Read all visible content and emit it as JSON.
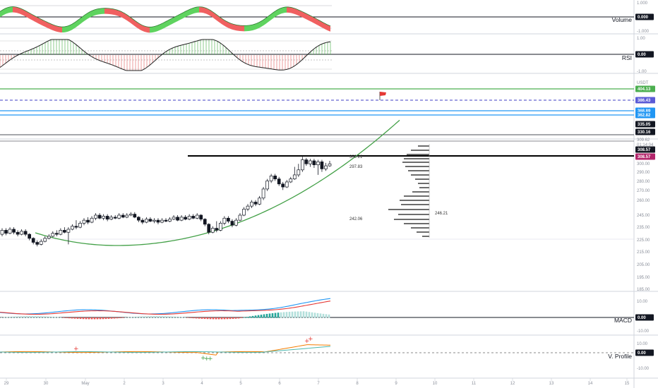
{
  "chart_data": {
    "type": "line",
    "title": "",
    "price_panel": {
      "y_ticks": [
        "309.62",
        "01:14:04",
        "300.00",
        "290.00",
        "280.00",
        "270.00",
        "260.00",
        "245.00",
        "235.00",
        "225.00",
        "215.00",
        "205.00",
        "195.00",
        "185.00"
      ],
      "badges": [
        {
          "label": "404.13",
          "color": "#4caf50"
        },
        {
          "label": "386.43",
          "color": "#5b5bd6"
        },
        {
          "label": "368.89",
          "color": "#2196f3"
        },
        {
          "label": "362.82",
          "color": "#2196f3"
        },
        {
          "label": "335.05",
          "color": "#131722"
        },
        {
          "label": "330.16",
          "color": "#131722"
        },
        {
          "label": "308.57",
          "color": "#131722"
        },
        {
          "label": "308.57",
          "color": "#b2256b"
        }
      ],
      "annotations": [
        "309.21",
        "297.83",
        "242.06",
        "246.21"
      ],
      "candles": [
        {
          "o": 236,
          "c": 240,
          "h": 242,
          "l": 234
        },
        {
          "o": 240,
          "c": 237,
          "h": 242,
          "l": 235
        },
        {
          "o": 237,
          "c": 241,
          "h": 243,
          "l": 236
        },
        {
          "o": 241,
          "c": 238,
          "h": 243,
          "l": 236
        },
        {
          "o": 238,
          "c": 236,
          "h": 240,
          "l": 234
        },
        {
          "o": 236,
          "c": 239,
          "h": 241,
          "l": 235
        },
        {
          "o": 239,
          "c": 236,
          "h": 241,
          "l": 234
        },
        {
          "o": 236,
          "c": 232,
          "h": 237,
          "l": 230
        },
        {
          "o": 232,
          "c": 228,
          "h": 233,
          "l": 226
        },
        {
          "o": 228,
          "c": 226,
          "h": 230,
          "l": 224
        },
        {
          "o": 226,
          "c": 229,
          "h": 231,
          "l": 225
        },
        {
          "o": 229,
          "c": 232,
          "h": 234,
          "l": 228
        },
        {
          "o": 232,
          "c": 234,
          "h": 236,
          "l": 231
        },
        {
          "o": 234,
          "c": 237,
          "h": 239,
          "l": 233
        },
        {
          "o": 237,
          "c": 236,
          "h": 240,
          "l": 234
        },
        {
          "o": 236,
          "c": 240,
          "h": 242,
          "l": 235
        },
        {
          "o": 240,
          "c": 238,
          "h": 243,
          "l": 237
        },
        {
          "o": 238,
          "c": 241,
          "h": 243,
          "l": 226
        },
        {
          "o": 241,
          "c": 244,
          "h": 246,
          "l": 240
        },
        {
          "o": 244,
          "c": 243,
          "h": 250,
          "l": 241
        },
        {
          "o": 243,
          "c": 247,
          "h": 249,
          "l": 242
        },
        {
          "o": 247,
          "c": 250,
          "h": 252,
          "l": 245
        },
        {
          "o": 250,
          "c": 248,
          "h": 253,
          "l": 246
        },
        {
          "o": 248,
          "c": 252,
          "h": 254,
          "l": 247
        },
        {
          "o": 252,
          "c": 255,
          "h": 257,
          "l": 250
        },
        {
          "o": 255,
          "c": 252,
          "h": 257,
          "l": 251
        },
        {
          "o": 252,
          "c": 254,
          "h": 256,
          "l": 250
        },
        {
          "o": 254,
          "c": 251,
          "h": 256,
          "l": 249
        },
        {
          "o": 251,
          "c": 253,
          "h": 255,
          "l": 250
        },
        {
          "o": 253,
          "c": 252,
          "h": 255,
          "l": 251
        },
        {
          "o": 252,
          "c": 255,
          "h": 257,
          "l": 251
        },
        {
          "o": 255,
          "c": 253,
          "h": 257,
          "l": 252
        },
        {
          "o": 253,
          "c": 255,
          "h": 257,
          "l": 252
        },
        {
          "o": 255,
          "c": 256,
          "h": 258,
          "l": 254
        },
        {
          "o": 256,
          "c": 253,
          "h": 258,
          "l": 252
        },
        {
          "o": 253,
          "c": 250,
          "h": 254,
          "l": 248
        },
        {
          "o": 250,
          "c": 248,
          "h": 252,
          "l": 246
        },
        {
          "o": 248,
          "c": 251,
          "h": 253,
          "l": 247
        },
        {
          "o": 251,
          "c": 249,
          "h": 253,
          "l": 248
        },
        {
          "o": 249,
          "c": 250,
          "h": 252,
          "l": 247
        },
        {
          "o": 250,
          "c": 248,
          "h": 252,
          "l": 246
        },
        {
          "o": 248,
          "c": 250,
          "h": 252,
          "l": 247
        },
        {
          "o": 250,
          "c": 249,
          "h": 252,
          "l": 248
        },
        {
          "o": 249,
          "c": 251,
          "h": 253,
          "l": 248
        },
        {
          "o": 251,
          "c": 253,
          "h": 255,
          "l": 250
        },
        {
          "o": 253,
          "c": 250,
          "h": 255,
          "l": 249
        },
        {
          "o": 250,
          "c": 253,
          "h": 255,
          "l": 249
        },
        {
          "o": 253,
          "c": 251,
          "h": 255,
          "l": 250
        },
        {
          "o": 251,
          "c": 254,
          "h": 256,
          "l": 250
        },
        {
          "o": 254,
          "c": 252,
          "h": 256,
          "l": 251
        },
        {
          "o": 252,
          "c": 255,
          "h": 257,
          "l": 251
        },
        {
          "o": 255,
          "c": 251,
          "h": 256,
          "l": 249
        },
        {
          "o": 251,
          "c": 246,
          "h": 252,
          "l": 244
        },
        {
          "o": 246,
          "c": 238,
          "h": 247,
          "l": 236
        },
        {
          "o": 238,
          "c": 242,
          "h": 244,
          "l": 237
        },
        {
          "o": 242,
          "c": 240,
          "h": 249,
          "l": 238
        },
        {
          "o": 240,
          "c": 247,
          "h": 249,
          "l": 239
        },
        {
          "o": 247,
          "c": 252,
          "h": 254,
          "l": 245
        },
        {
          "o": 252,
          "c": 249,
          "h": 254,
          "l": 247
        },
        {
          "o": 249,
          "c": 245,
          "h": 251,
          "l": 243
        },
        {
          "o": 245,
          "c": 250,
          "h": 252,
          "l": 244
        },
        {
          "o": 250,
          "c": 255,
          "h": 257,
          "l": 249
        },
        {
          "o": 255,
          "c": 261,
          "h": 263,
          "l": 254
        },
        {
          "o": 261,
          "c": 264,
          "h": 266,
          "l": 259
        },
        {
          "o": 264,
          "c": 268,
          "h": 270,
          "l": 262
        },
        {
          "o": 268,
          "c": 266,
          "h": 270,
          "l": 264
        },
        {
          "o": 266,
          "c": 272,
          "h": 274,
          "l": 265
        },
        {
          "o": 272,
          "c": 281,
          "h": 283,
          "l": 270
        },
        {
          "o": 281,
          "c": 289,
          "h": 291,
          "l": 279
        },
        {
          "o": 289,
          "c": 294,
          "h": 296,
          "l": 287
        },
        {
          "o": 294,
          "c": 291,
          "h": 296,
          "l": 289
        },
        {
          "o": 291,
          "c": 286,
          "h": 293,
          "l": 284
        },
        {
          "o": 286,
          "c": 283,
          "h": 288,
          "l": 280
        },
        {
          "o": 283,
          "c": 288,
          "h": 290,
          "l": 282
        },
        {
          "o": 288,
          "c": 291,
          "h": 293,
          "l": 287
        },
        {
          "o": 291,
          "c": 295,
          "h": 303,
          "l": 290
        },
        {
          "o": 295,
          "c": 300,
          "h": 306,
          "l": 293
        },
        {
          "o": 300,
          "c": 310,
          "h": 313,
          "l": 298
        },
        {
          "o": 310,
          "c": 306,
          "h": 312,
          "l": 304
        },
        {
          "o": 306,
          "c": 309,
          "h": 311,
          "l": 303
        },
        {
          "o": 309,
          "c": 305,
          "h": 311,
          "l": 302
        },
        {
          "o": 305,
          "c": 308,
          "h": 310,
          "l": 295
        },
        {
          "o": 308,
          "c": 301,
          "h": 310,
          "l": 298
        },
        {
          "o": 301,
          "c": 304,
          "h": 307,
          "l": 299
        },
        {
          "o": 304,
          "c": 306,
          "h": 309,
          "l": 303
        }
      ],
      "y_range": [
        225,
        320
      ]
    },
    "indicators": [
      {
        "name": "Volume",
        "value_badge": "0.000",
        "ticks": [
          "1.000",
          "-1.000"
        ]
      },
      {
        "name": "RSI",
        "value_badge": "0.00",
        "ticks": [
          "1.00",
          "-1.00"
        ]
      },
      {
        "name": "MACD",
        "value_badge": "0.00",
        "ticks": [
          "10.00",
          "-10.00"
        ]
      },
      {
        "name": "V. Profile",
        "value_badge": "0.00",
        "ticks": [
          "10.00",
          "-10.00"
        ]
      }
    ],
    "xlabel": "",
    "x_ticks": [
      "29",
      "30",
      "May",
      "2",
      "3",
      "4",
      "5",
      "6",
      "7",
      "8",
      "9",
      "10",
      "11",
      "12",
      "13",
      "14",
      "15"
    ],
    "price_ticks_extra": [
      "USDT"
    ]
  }
}
